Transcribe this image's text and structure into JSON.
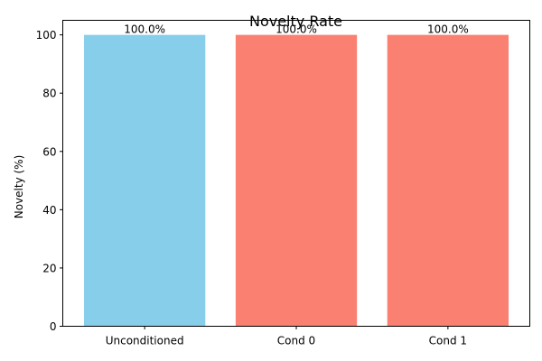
{
  "chart_data": {
    "type": "bar",
    "title": "Novelty Rate",
    "xlabel": "",
    "ylabel": "Novelty (%)",
    "categories": [
      "Unconditioned",
      "Cond 0",
      "Cond 1"
    ],
    "values": [
      100.0,
      100.0,
      100.0
    ],
    "data_labels": [
      "100.0%",
      "100.0%",
      "100.0%"
    ],
    "bar_colors": [
      "#87CEEB",
      "#FA8072",
      "#FA8072"
    ],
    "ylim": [
      0,
      105
    ],
    "yticks": [
      0,
      20,
      40,
      60,
      80,
      100
    ],
    "grid": false,
    "legend": "none"
  }
}
